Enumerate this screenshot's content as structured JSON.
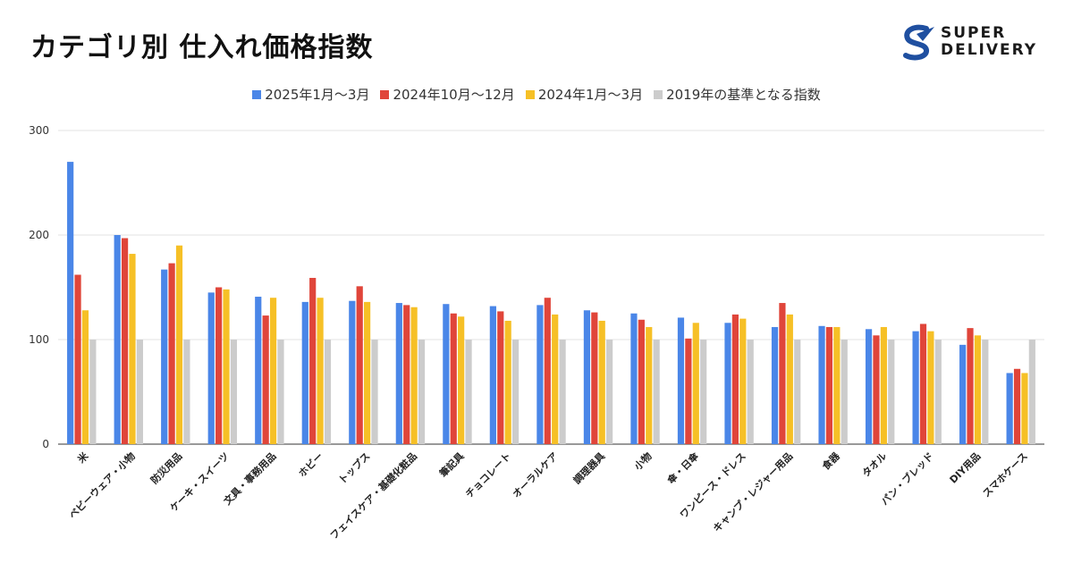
{
  "title": "カテゴリ別 仕入れ価格指数",
  "logo": {
    "line1": "SUPER",
    "line2": "DELIVERY"
  },
  "colors": {
    "blue": "#4a86e8",
    "red": "#e0453a",
    "yellow": "#f6c026",
    "gray": "#cccccc"
  },
  "chart_data": {
    "type": "bar",
    "title": "カテゴリ別 仕入れ価格指数",
    "xlabel": "",
    "ylabel": "",
    "ylim": [
      0,
      300
    ],
    "yticks": [
      0,
      100,
      200,
      300
    ],
    "grid": true,
    "legend": "top-center",
    "categories": [
      "米",
      "ベビーウェア・小物",
      "防災用品",
      "ケーキ・スイーツ",
      "文具・事務用品",
      "ホビー",
      "トップス",
      "フェイスケア・基礎化粧品",
      "筆記具",
      "チョコレート",
      "オーラルケア",
      "調理器具",
      "小物",
      "傘・日傘",
      "ワンピース・ドレス",
      "キャンプ・レジャー用品",
      "食器",
      "タオル",
      "パン・ブレッド",
      "DIY用品",
      "スマホケース"
    ],
    "series": [
      {
        "name": "2025年1月〜3月",
        "color": "#4a86e8",
        "values": [
          270,
          200,
          167,
          145,
          141,
          136,
          137,
          135,
          134,
          132,
          133,
          128,
          125,
          121,
          116,
          112,
          113,
          110,
          108,
          95,
          68
        ]
      },
      {
        "name": "2024年10月〜12月",
        "color": "#e0453a",
        "values": [
          162,
          197,
          173,
          150,
          123,
          159,
          151,
          133,
          125,
          127,
          140,
          126,
          119,
          101,
          124,
          135,
          112,
          104,
          115,
          111,
          72
        ]
      },
      {
        "name": "2024年1月〜3月",
        "color": "#f6c026",
        "values": [
          128,
          182,
          190,
          148,
          140,
          140,
          136,
          131,
          122,
          118,
          124,
          118,
          112,
          116,
          120,
          124,
          112,
          112,
          108,
          104,
          68
        ]
      },
      {
        "name": "2019年の基準となる指数",
        "color": "#cccccc",
        "values": [
          100,
          100,
          100,
          100,
          100,
          100,
          100,
          100,
          100,
          100,
          100,
          100,
          100,
          100,
          100,
          100,
          100,
          100,
          100,
          100,
          100
        ]
      }
    ]
  }
}
